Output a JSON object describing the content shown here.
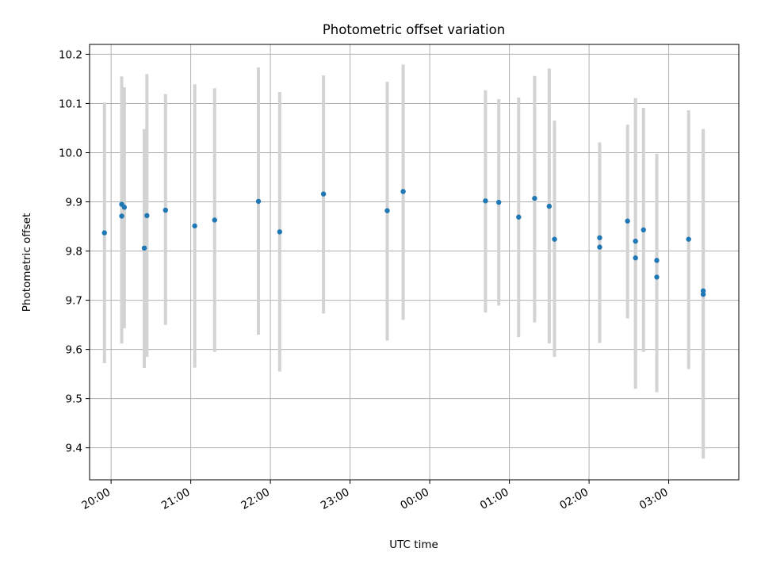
{
  "chart_data": {
    "type": "scatter",
    "title": "Photometric offset variation",
    "xlabel": "UTC time",
    "ylabel": "Photometric offset",
    "x_ticks": [
      "20:00",
      "21:00",
      "22:00",
      "23:00",
      "00:00",
      "01:00",
      "02:00",
      "03:00"
    ],
    "y_ticks": [
      "9.4",
      "9.5",
      "9.6",
      "9.7",
      "9.8",
      "9.9",
      "10.0",
      "10.1",
      "10.2"
    ],
    "x_tick_hours": [
      20,
      21,
      22,
      23,
      24,
      25,
      26,
      27
    ],
    "xlim_hours": [
      19.73,
      27.88
    ],
    "ylim": [
      9.335,
      10.22
    ],
    "grid": true,
    "point_color": "#1f77b4",
    "errorbar_color": "#d3d3d3",
    "points": [
      {
        "x": "19:55",
        "y": 9.837,
        "ylow": 9.572,
        "yhigh": 10.102
      },
      {
        "x": "20:08",
        "y": 9.871,
        "ylow": 9.612,
        "yhigh": 10.155
      },
      {
        "x": "20:08",
        "y": 9.895,
        "ylow": 9.64,
        "yhigh": 10.15
      },
      {
        "x": "20:10",
        "y": 9.889,
        "ylow": 9.643,
        "yhigh": 10.133
      },
      {
        "x": "20:25",
        "y": 9.806,
        "ylow": 9.562,
        "yhigh": 10.048
      },
      {
        "x": "20:27",
        "y": 9.872,
        "ylow": 9.585,
        "yhigh": 10.16
      },
      {
        "x": "20:41",
        "y": 9.883,
        "ylow": 9.65,
        "yhigh": 10.119
      },
      {
        "x": "21:03",
        "y": 9.851,
        "ylow": 9.563,
        "yhigh": 10.139
      },
      {
        "x": "21:18",
        "y": 9.863,
        "ylow": 9.595,
        "yhigh": 10.131
      },
      {
        "x": "21:51",
        "y": 9.901,
        "ylow": 9.63,
        "yhigh": 10.173
      },
      {
        "x": "22:07",
        "y": 9.839,
        "ylow": 9.555,
        "yhigh": 10.123
      },
      {
        "x": "22:40",
        "y": 9.916,
        "ylow": 9.673,
        "yhigh": 10.157
      },
      {
        "x": "23:28",
        "y": 9.882,
        "ylow": 9.618,
        "yhigh": 10.144
      },
      {
        "x": "23:40",
        "y": 9.921,
        "ylow": 9.66,
        "yhigh": 10.179
      },
      {
        "x": "00:42",
        "y": 9.902,
        "ylow": 9.675,
        "yhigh": 10.127
      },
      {
        "x": "00:52",
        "y": 9.899,
        "ylow": 9.689,
        "yhigh": 10.109
      },
      {
        "x": "01:07",
        "y": 9.869,
        "ylow": 9.625,
        "yhigh": 10.112
      },
      {
        "x": "01:19",
        "y": 9.907,
        "ylow": 9.655,
        "yhigh": 10.156
      },
      {
        "x": "01:30",
        "y": 9.891,
        "ylow": 9.612,
        "yhigh": 10.171
      },
      {
        "x": "01:34",
        "y": 9.824,
        "ylow": 9.585,
        "yhigh": 10.065
      },
      {
        "x": "02:08",
        "y": 9.827,
        "ylow": 9.636,
        "yhigh": 10.021
      },
      {
        "x": "02:08",
        "y": 9.808,
        "ylow": 9.613,
        "yhigh": 10.002
      },
      {
        "x": "02:29",
        "y": 9.861,
        "ylow": 9.663,
        "yhigh": 10.057
      },
      {
        "x": "02:35",
        "y": 9.82,
        "ylow": 9.53,
        "yhigh": 10.108
      },
      {
        "x": "02:35",
        "y": 9.786,
        "ylow": 9.52,
        "yhigh": 10.111
      },
      {
        "x": "02:41",
        "y": 9.843,
        "ylow": 9.595,
        "yhigh": 10.091
      },
      {
        "x": "02:51",
        "y": 9.781,
        "ylow": 9.56,
        "yhigh": 9.998
      },
      {
        "x": "02:51",
        "y": 9.747,
        "ylow": 9.513,
        "yhigh": 9.98
      },
      {
        "x": "03:15",
        "y": 9.824,
        "ylow": 9.56,
        "yhigh": 10.086
      },
      {
        "x": "03:26",
        "y": 9.712,
        "ylow": 9.378,
        "yhigh": 10.048
      },
      {
        "x": "03:26",
        "y": 9.719,
        "ylow": 9.397,
        "yhigh": 10.043
      }
    ]
  }
}
